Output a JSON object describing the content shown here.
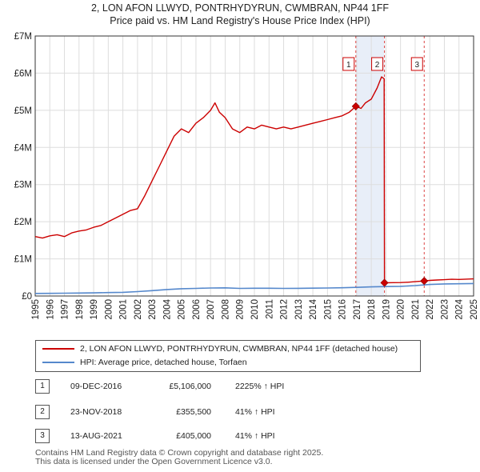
{
  "header": {
    "title_line1": "2, LON AFON LLWYD, PONTRHYDYRUN, CWMBRAN, NP44 1FF",
    "title_line2": "Price paid vs. HM Land Registry's House Price Index (HPI)"
  },
  "chart_data": {
    "type": "line",
    "title": "2, LON AFON LLWYD, PONTRHYDYRUN, CWMBRAN, NP44 1FF — Price paid vs. HM Land Registry's House Price Index (HPI)",
    "xlim": [
      1995,
      2025
    ],
    "ylim": [
      0,
      7000000
    ],
    "y_ticks": [
      0,
      1000000,
      2000000,
      3000000,
      4000000,
      5000000,
      6000000,
      7000000
    ],
    "y_tick_labels": [
      "£0",
      "£1M",
      "£2M",
      "£3M",
      "£4M",
      "£5M",
      "£6M",
      "£7M"
    ],
    "x_ticks": [
      1995,
      1996,
      1997,
      1998,
      1999,
      2000,
      2001,
      2002,
      2003,
      2004,
      2005,
      2006,
      2007,
      2008,
      2009,
      2010,
      2011,
      2012,
      2013,
      2014,
      2015,
      2016,
      2017,
      2018,
      2019,
      2020,
      2021,
      2022,
      2023,
      2024,
      2025
    ],
    "x_tick_labels": [
      "1995",
      "1996",
      "1997",
      "1998",
      "1999",
      "2000",
      "2001",
      "2002",
      "2003",
      "2004",
      "2005",
      "2006",
      "2007",
      "2008",
      "2009",
      "2010",
      "2011",
      "2012",
      "2013",
      "2014",
      "2015",
      "2016",
      "2017",
      "2018",
      "2019",
      "2020",
      "2021",
      "2022",
      "2023",
      "2024",
      "2025"
    ],
    "grid": true,
    "colors": {
      "property": "#cc0000",
      "hpi": "#5588cc",
      "shade": "#e8eef8",
      "sale_line": "#dd4444"
    },
    "series": [
      {
        "name": "2, LON AFON LLWYD, PONTRHYDYRUN, CWMBRAN, NP44 1FF (detached house)",
        "x": [
          1995.0,
          1995.5,
          1996.0,
          1996.5,
          1997.0,
          1997.5,
          1998.0,
          1998.5,
          1999.0,
          1999.5,
          2000.0,
          2000.5,
          2001.0,
          2001.5,
          2002.0,
          2002.5,
          2003.0,
          2003.5,
          2004.0,
          2004.5,
          2005.0,
          2005.5,
          2006.0,
          2006.5,
          2007.0,
          2007.3,
          2007.6,
          2008.0,
          2008.5,
          2009.0,
          2009.5,
          2010.0,
          2010.5,
          2011.0,
          2011.5,
          2012.0,
          2012.5,
          2013.0,
          2013.5,
          2014.0,
          2014.5,
          2015.0,
          2015.5,
          2016.0,
          2016.5,
          2016.94,
          2017.3,
          2017.6,
          2018.0,
          2018.4,
          2018.7,
          2018.88,
          2018.9,
          2019.5,
          2020.0,
          2020.5,
          2021.0,
          2021.62,
          2022.0,
          2022.5,
          2023.0,
          2023.5,
          2024.0,
          2024.5,
          2025.0
        ],
        "values": [
          1600000,
          1560000,
          1620000,
          1650000,
          1600000,
          1700000,
          1750000,
          1780000,
          1850000,
          1900000,
          2000000,
          2100000,
          2200000,
          2300000,
          2350000,
          2700000,
          3100000,
          3500000,
          3900000,
          4300000,
          4500000,
          4400000,
          4650000,
          4800000,
          5000000,
          5200000,
          4950000,
          4800000,
          4500000,
          4400000,
          4550000,
          4500000,
          4600000,
          4550000,
          4500000,
          4550000,
          4500000,
          4550000,
          4600000,
          4650000,
          4700000,
          4750000,
          4800000,
          4850000,
          4950000,
          5106000,
          5050000,
          5200000,
          5300000,
          5600000,
          5900000,
          5850000,
          355500,
          360000,
          362000,
          370000,
          385000,
          405000,
          420000,
          430000,
          440000,
          450000,
          445000,
          455000,
          460000
        ]
      },
      {
        "name": "HPI: Average price, detached house, Torfaen",
        "x": [
          1995.0,
          1996.0,
          1997.0,
          1998.0,
          1999.0,
          2000.0,
          2001.0,
          2002.0,
          2003.0,
          2004.0,
          2005.0,
          2006.0,
          2007.0,
          2008.0,
          2009.0,
          2010.0,
          2011.0,
          2012.0,
          2013.0,
          2014.0,
          2015.0,
          2016.0,
          2017.0,
          2018.0,
          2019.0,
          2020.0,
          2021.0,
          2022.0,
          2023.0,
          2024.0,
          2025.0
        ],
        "values": [
          70000,
          72000,
          76000,
          80000,
          85000,
          92000,
          100000,
          118000,
          145000,
          175000,
          195000,
          205000,
          215000,
          220000,
          205000,
          210000,
          208000,
          205000,
          207000,
          212000,
          216000,
          222000,
          232000,
          245000,
          255000,
          260000,
          280000,
          310000,
          325000,
          330000,
          335000
        ]
      }
    ],
    "sales": [
      {
        "id": "1",
        "x": 2016.94,
        "value": 5106000
      },
      {
        "id": "2",
        "x": 2018.9,
        "value": 355500
      },
      {
        "id": "3",
        "x": 2021.62,
        "value": 405000
      }
    ],
    "shaded_ranges": [
      [
        2016.94,
        2018.9
      ]
    ]
  },
  "legend": {
    "property_label": "2, LON AFON LLWYD, PONTRHYDYRUN, CWMBRAN, NP44 1FF (detached house)",
    "hpi_label": "HPI: Average price, detached house, Torfaen"
  },
  "transactions": [
    {
      "num": "1",
      "date": "09-DEC-2016",
      "price": "£5,106,000",
      "hpi_change": "2225% ↑ HPI"
    },
    {
      "num": "2",
      "date": "23-NOV-2018",
      "price": "£355,500",
      "hpi_change": "41% ↑ HPI"
    },
    {
      "num": "3",
      "date": "13-AUG-2021",
      "price": "£405,000",
      "hpi_change": "41% ↑ HPI"
    }
  ],
  "footer": {
    "line1": "Contains HM Land Registry data © Crown copyright and database right 2025.",
    "line2": "This data is licensed under the Open Government Licence v3.0."
  }
}
